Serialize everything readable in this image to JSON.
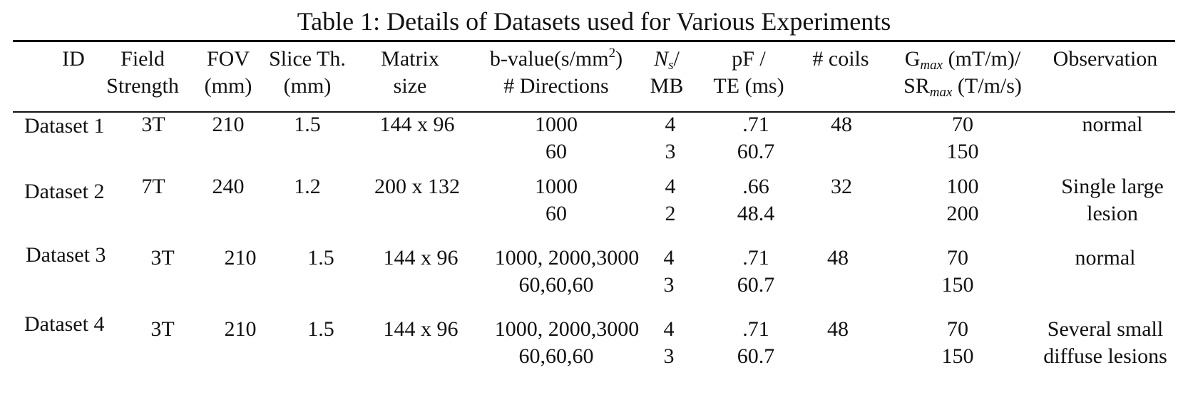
{
  "caption": "Table 1: Details of Datasets used for Various Experiments",
  "headers": {
    "id": "ID",
    "field_1": "Field",
    "field_2": "Strength",
    "fov_1": "FOV",
    "fov_2": "(mm)",
    "slice_1": "Slice Th.",
    "slice_2": "(mm)",
    "matrix_1": "Matrix",
    "matrix_2": "size",
    "bvalue_1a": "b-value(s/mm",
    "bvalue_1sup": "2",
    "bvalue_1b": ")",
    "bvalue_2": "# Directions",
    "ns_1a": "N",
    "ns_1sub": "s",
    "ns_1b": "/",
    "ns_2": "MB",
    "pf_1": "pF /",
    "pf_2": "TE (ms)",
    "coils": "# coils",
    "g_1a": "G",
    "g_1sub": "max",
    "g_1b": " (mT/m)/",
    "g_2a": "SR",
    "g_2sub": "max",
    "g_2b": " (T/m/s)",
    "obs": "Observation"
  },
  "rows": [
    {
      "id": "Dataset 1",
      "field": "3T",
      "fov": "210",
      "slice": "1.5",
      "matrix": "144 x 96",
      "bvalue": "1000",
      "directions": "60",
      "ns": "4",
      "mb": "3",
      "pf": ".71",
      "te": "60.7",
      "coils": "48",
      "gmax": "70",
      "srmax": "150",
      "obs_1": "normal",
      "obs_2": ""
    },
    {
      "id": "Dataset 2",
      "field": "7T",
      "fov": "240",
      "slice": "1.2",
      "matrix": "200 x 132",
      "bvalue": "1000",
      "directions": "60",
      "ns": "4",
      "mb": "2",
      "pf": ".66",
      "te": "48.4",
      "coils": "32",
      "gmax": "100",
      "srmax": "200",
      "obs_1": "Single large",
      "obs_2": "lesion"
    },
    {
      "id": "Dataset 3",
      "field": "3T",
      "fov": "210",
      "slice": "1.5",
      "matrix": "144 x 96",
      "bvalue": "1000, 2000,3000",
      "directions": "60,60,60",
      "ns": "4",
      "mb": "3",
      "pf": ".71",
      "te": "60.7",
      "coils": "48",
      "gmax": "70",
      "srmax": "150",
      "obs_1": "normal",
      "obs_2": ""
    },
    {
      "id": "Dataset 4",
      "field": "3T",
      "fov": "210",
      "slice": "1.5",
      "matrix": "144 x 96",
      "bvalue": "1000, 2000,3000",
      "directions": "60,60,60",
      "ns": "4",
      "mb": "3",
      "pf": ".71",
      "te": "60.7",
      "coils": "48",
      "gmax": "70",
      "srmax": "150",
      "obs_1": "Several small",
      "obs_2": "diffuse lesions"
    }
  ]
}
